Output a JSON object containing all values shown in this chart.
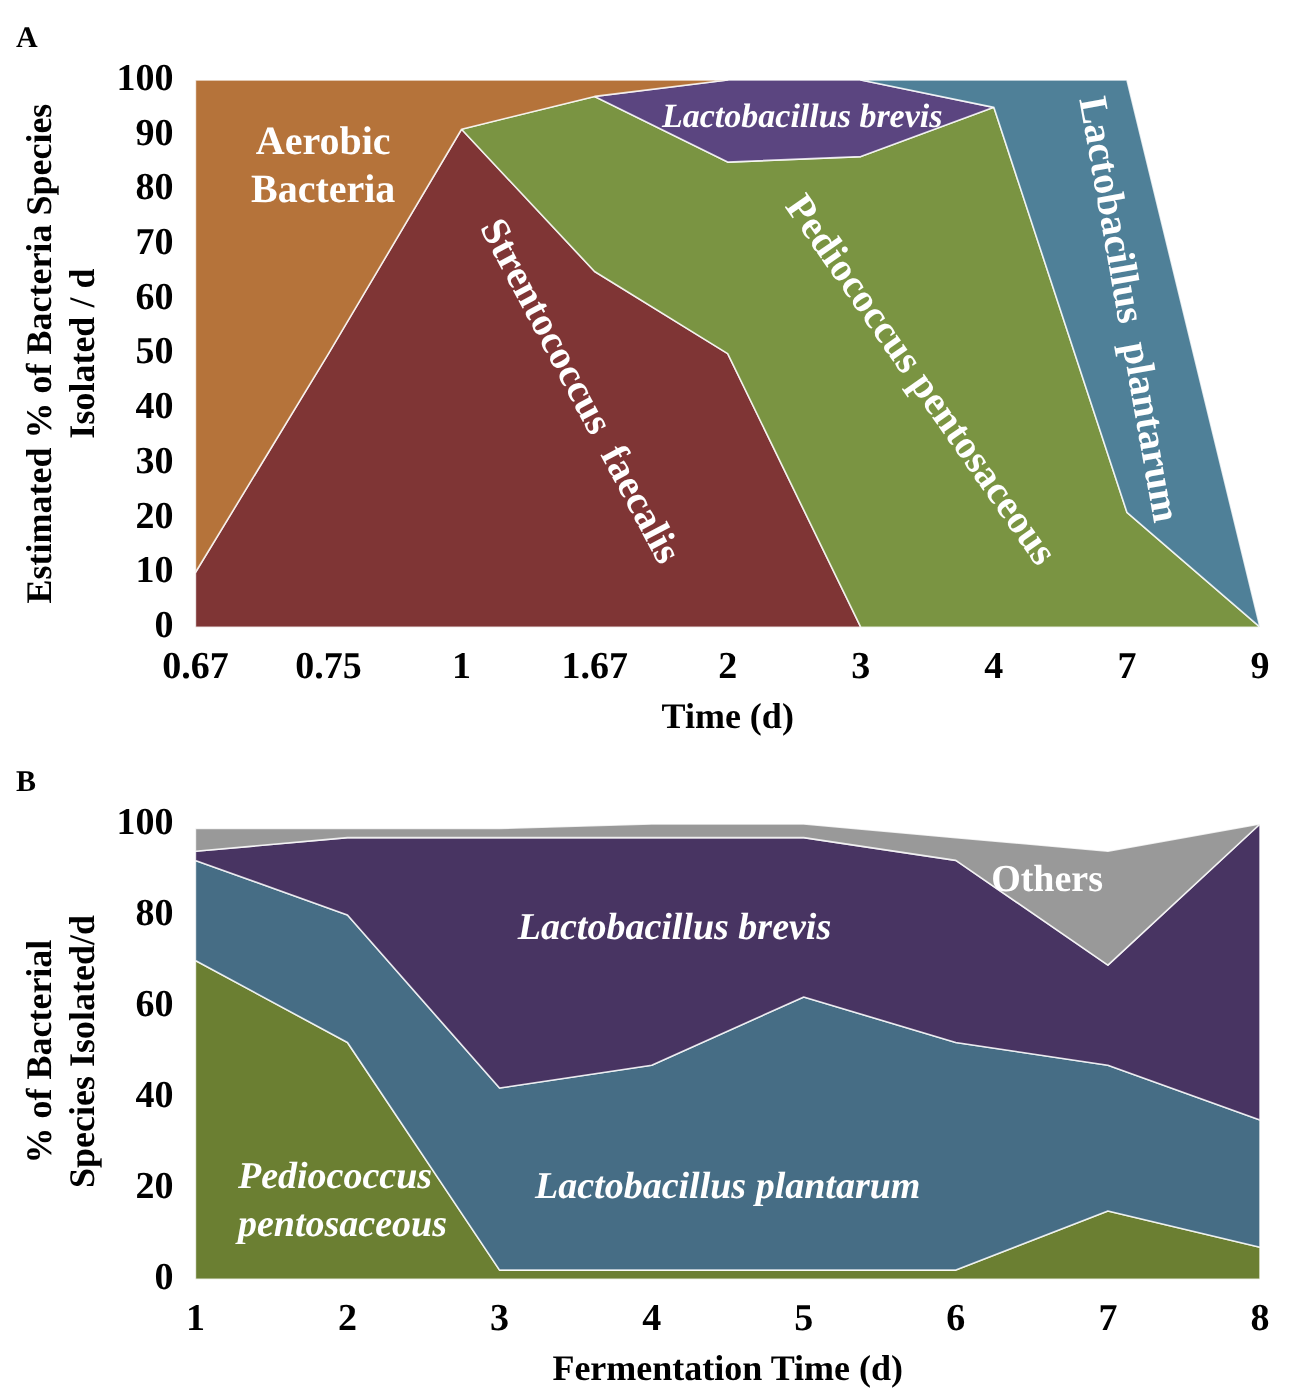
{
  "chart_data": [
    {
      "type": "area",
      "title": "A",
      "xlabel": "Time (d)",
      "ylabel": "Estimated % of Bacteria Species Isolated / d",
      "stacked": true,
      "legend": false,
      "grid": false,
      "categories": [
        "0.67",
        "0.75",
        "1",
        "1.67",
        "2",
        "3",
        "4",
        "7",
        "9"
      ],
      "ylim": [
        0,
        100
      ],
      "yticks": [
        0,
        10,
        20,
        30,
        40,
        50,
        60,
        70,
        80,
        90,
        100
      ],
      "series": [
        {
          "name": "Strentococcus  faecalis",
          "color": "#7f3535",
          "values": [
            10,
            50,
            91,
            65,
            50,
            0,
            null,
            null,
            null
          ]
        },
        {
          "name": "Pediococcus pentosaceous",
          "color": "#7a9442",
          "values": [
            null,
            null,
            0,
            32,
            35,
            86,
            95,
            21,
            0
          ]
        },
        {
          "name": "Lactobacillus brevis",
          "color": "#5b4580",
          "values": [
            null,
            null,
            null,
            0,
            15,
            14,
            0,
            null,
            null
          ]
        },
        {
          "name": "Lactobacillus  plantarum",
          "color": "#4f8098",
          "values": [
            null,
            null,
            null,
            null,
            null,
            0,
            5,
            79,
            0
          ]
        },
        {
          "name": "Aerobic Bacteria",
          "color": "#b5733a",
          "values": [
            90,
            50,
            9,
            3,
            0,
            null,
            null,
            null,
            null
          ]
        }
      ]
    },
    {
      "type": "area",
      "title": "B",
      "xlabel": "Fermentation Time (d)",
      "ylabel": "% of Bacterial Species Isolated/d",
      "stacked": true,
      "legend": false,
      "grid": false,
      "categories": [
        "1",
        "2",
        "3",
        "4",
        "5",
        "6",
        "7",
        "8"
      ],
      "ylim": [
        0,
        100
      ],
      "yticks": [
        0,
        20,
        40,
        60,
        80,
        100
      ],
      "series": [
        {
          "name": "Pediococcus pentosaceous",
          "color": "#6b7f32",
          "values": [
            70,
            52,
            2,
            2,
            2,
            2,
            15,
            7
          ]
        },
        {
          "name": "Lactobacillus plantarum",
          "color": "#466d85",
          "values": [
            22,
            28,
            40,
            45,
            60,
            50,
            32,
            28
          ]
        },
        {
          "name": "Lactobacillus brevis",
          "color": "#483462",
          "values": [
            2,
            17,
            55,
            50,
            35,
            40,
            22,
            65
          ]
        },
        {
          "name": "Others",
          "color": "#999999",
          "values": [
            5,
            2,
            2,
            3,
            3,
            5,
            25,
            0
          ]
        }
      ]
    }
  ]
}
